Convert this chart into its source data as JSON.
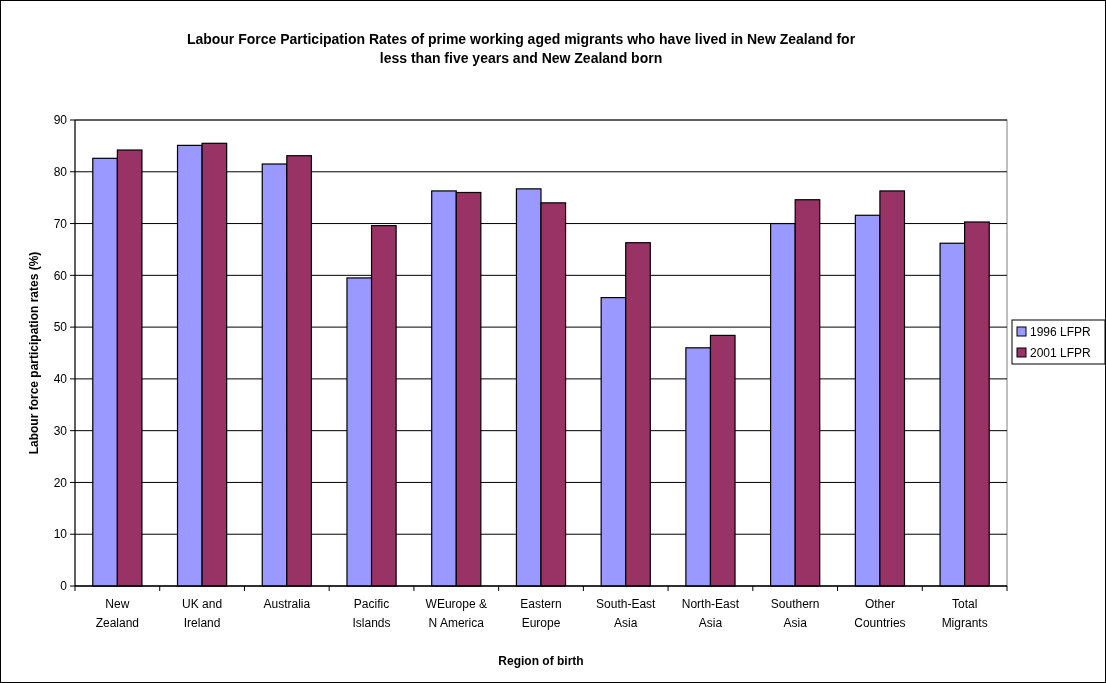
{
  "chart_data": {
    "type": "bar",
    "title": "Labour Force Participation Rates of prime working aged migrants who have lived in New Zealand for\nless than five years and New Zealand born",
    "xlabel": "Region of birth",
    "ylabel": "Labour force participation rates (%)",
    "categories": [
      "New\nZealand",
      "UK and\nIreland",
      "Australia",
      "Pacific\nIslands",
      "WEurope &\nN America",
      "Eastern\nEurope",
      "South-East\nAsia",
      "North-East\nAsia",
      "Southern\nAsia",
      "Other\nCountries",
      "Total\nMigrants"
    ],
    "series": [
      {
        "name": "1996 LFPR",
        "color": "#9999ff",
        "values": [
          82.6,
          85.1,
          81.5,
          59.5,
          76.3,
          76.7,
          55.7,
          46.0,
          70.0,
          71.6,
          66.2
        ]
      },
      {
        "name": "2001 LFPR",
        "color": "#993366",
        "values": [
          84.2,
          85.5,
          83.1,
          69.6,
          76.0,
          74.0,
          66.3,
          48.4,
          74.6,
          76.3,
          70.3
        ]
      }
    ],
    "ylim": [
      0,
      90
    ],
    "yticks": [
      0,
      10,
      20,
      30,
      40,
      50,
      60,
      70,
      80,
      90
    ],
    "grid": "y",
    "legend": "right"
  }
}
